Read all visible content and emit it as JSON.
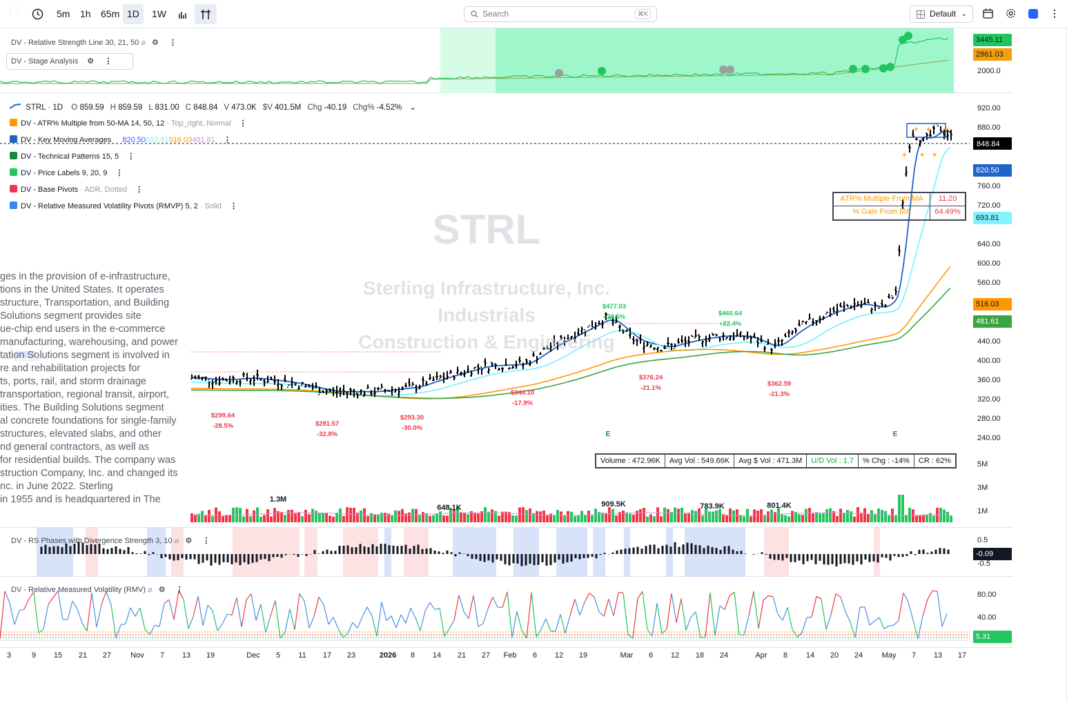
{
  "toolbar": {
    "intervals": [
      "5m",
      "1h",
      "65m",
      "1D",
      "1W"
    ],
    "active_interval": "1D",
    "search_placeholder": "Search",
    "search_shortcut": "⌘K",
    "layout_label": "Default"
  },
  "rs_pane": {
    "title": "DV - Relative Strength Line 30, 21, 50",
    "sub_title": "DV - Stage Analysis",
    "axis": [
      "2000.0"
    ],
    "tags": [
      {
        "value": "3445.11",
        "color": "#22c55e"
      },
      {
        "value": "2861.03",
        "color": "#f59e0b"
      }
    ]
  },
  "main_legend": {
    "symbol": "STRL · 1D",
    "ohlc": [
      {
        "k": "O",
        "v": "859.59"
      },
      {
        "k": "H",
        "v": "859.59"
      },
      {
        "k": "L",
        "v": "831.00"
      },
      {
        "k": "C",
        "v": "848.84"
      },
      {
        "k": "V",
        "v": "473.0K"
      },
      {
        "k": "$V",
        "v": "401.5M"
      },
      {
        "k": "Chg",
        "v": "-40.19"
      },
      {
        "k": "Chg%",
        "v": "-4.52%"
      }
    ],
    "indicators": [
      {
        "color": "#ff9800",
        "name": "DV - ATR% Multiple from 50-MA 14, 50, 12",
        "extra": "· Top_right, Normal"
      },
      {
        "color": "#1e63c8",
        "name": "DV - Key Moving Averages",
        "extra": ""
      },
      {
        "color": "#158a3b",
        "name": "DV - Technical Patterns 15, 5",
        "extra": ""
      },
      {
        "color": "#22c55e",
        "name": "DV - Price Labels 9, 20, 9",
        "extra": ""
      },
      {
        "color": "#f23645",
        "name": "DV - Base Pivots",
        "extra": "· ADR, Dotted"
      },
      {
        "color": "#3b82f6",
        "name": "DV - Relative Measured Volatility Pivots (RMVP) 5, 2",
        "extra": "· Solid"
      }
    ],
    "ma_values": [
      {
        "v": "820.50",
        "c": "#2962ff"
      },
      {
        "v": "693.81",
        "c": "#7ff3ff"
      },
      {
        "v": "516.03",
        "c": "#ff9800"
      },
      {
        "v": "481.61",
        "c": "#ce93d8"
      }
    ]
  },
  "watermark": {
    "ticker": "STRL",
    "company": "Sterling Infrastructure, Inc.",
    "sector": "Industrials",
    "industry": "Construction & Engineering"
  },
  "description_lines": [
    "ges in the provision of e-infrastructure,",
    "tions in the United States. It operates",
    "structure, Transportation, and Building",
    "Solutions segment provides site",
    "ue-chip end users in the e-commerce",
    "manufacturing, warehousing, and power",
    "tation Solutions segment is involved in",
    "re and rehabilitation projects for",
    "ts, ports, rail, and storm drainage",
    "transportation, regional transit, airport,",
    "ities. The Building Solutions segment",
    "al concrete foundations for single-family",
    " structures, elevated slabs, and other",
    "nd general contractors, as well as",
    "for residential builds. The company was",
    "struction Company, Inc. and changed its",
    "nc. in June 2022. Sterling",
    " in 1955 and is headquartered in The"
  ],
  "atr_table": [
    {
      "k": "ATR% Multiple From MA",
      "v": "11.20"
    },
    {
      "k": "% Gain From MA",
      "v": "64.49%"
    }
  ],
  "price_axis": [
    "920.00",
    "880.00",
    "760.00",
    "720.00",
    "640.00",
    "600.00",
    "560.00",
    "440.00",
    "400.00",
    "360.00",
    "320.00",
    "280.00",
    "240.00"
  ],
  "price_tags": [
    {
      "v": "848.84",
      "bg": "#000000",
      "fg": "#ffffff"
    },
    {
      "v": "820.50",
      "bg": "#1e63c8",
      "fg": "#ffffff"
    },
    {
      "v": "693.81",
      "bg": "#7ff3ff",
      "fg": "#131722"
    },
    {
      "v": "516.03",
      "bg": "#ff9800",
      "fg": "#131722"
    },
    {
      "v": "481.61",
      "bg": "#38a53f",
      "fg": "#ffffff"
    }
  ],
  "pivot_labels": [
    {
      "p": "$299.64",
      "c": "-28.5%",
      "color": "#f23645"
    },
    {
      "p": "$281.57",
      "c": "-32.8%",
      "color": "#f23645"
    },
    {
      "p": "$293.30",
      "c": "-30.0%",
      "color": "#f23645"
    },
    {
      "p": "$344.10",
      "c": "-17.9%",
      "color": "#f23645"
    },
    {
      "p": "$477.03",
      "c": "+38.6%",
      "color": "#22c55e"
    },
    {
      "p": "$376.24",
      "c": "-21.1%",
      "color": "#f23645"
    },
    {
      "p": "$460.64",
      "c": "+22.4%",
      "color": "#22c55e"
    },
    {
      "p": "$362.59",
      "c": "-21.3%",
      "color": "#f23645"
    }
  ],
  "earnings_marker": "E",
  "stats": [
    {
      "t": "Volume : 472.96K",
      "c": "#131722"
    },
    {
      "t": "Avg Vol : 549.66K",
      "c": "#131722"
    },
    {
      "t": "Avg $ Vol : 471.3M",
      "c": "#131722"
    },
    {
      "t": "U/D Vol : 1.7",
      "c": "#22a33c"
    },
    {
      "t": "% Chg : -14%",
      "c": "#131722"
    },
    {
      "t": "CR : 62%",
      "c": "#131722"
    }
  ],
  "volume_axis": [
    "5M",
    "3M",
    "1M"
  ],
  "volume_labels": [
    "1.3M",
    "648.1K",
    "909.5K",
    "783.9K",
    "801.4K"
  ],
  "rs_phase_pane": {
    "title": "DV - RS Phases with Divergence Strength 3, 10",
    "axis": [
      "0.5",
      "-0.5"
    ],
    "tag": "-0.09"
  },
  "rmv_pane": {
    "title": "DV - Relative Measured Volatility (RMV)",
    "axis": [
      "80.00",
      "40.00"
    ],
    "tag": "5.31"
  },
  "time_axis": [
    {
      "t": "3",
      "b": false
    },
    {
      "t": "9",
      "b": false
    },
    {
      "t": "15",
      "b": false
    },
    {
      "t": "21",
      "b": false
    },
    {
      "t": "27",
      "b": false
    },
    {
      "t": "Nov",
      "b": false
    },
    {
      "t": "7",
      "b": false
    },
    {
      "t": "13",
      "b": false
    },
    {
      "t": "19",
      "b": false
    },
    {
      "t": "Dec",
      "b": false
    },
    {
      "t": "5",
      "b": false
    },
    {
      "t": "11",
      "b": false
    },
    {
      "t": "17",
      "b": false
    },
    {
      "t": "23",
      "b": false
    },
    {
      "t": "2026",
      "b": true
    },
    {
      "t": "8",
      "b": false
    },
    {
      "t": "14",
      "b": false
    },
    {
      "t": "21",
      "b": false
    },
    {
      "t": "27",
      "b": false
    },
    {
      "t": "Feb",
      "b": false
    },
    {
      "t": "6",
      "b": false
    },
    {
      "t": "12",
      "b": false
    },
    {
      "t": "19",
      "b": false
    },
    {
      "t": "Mar",
      "b": false
    },
    {
      "t": "6",
      "b": false
    },
    {
      "t": "12",
      "b": false
    },
    {
      "t": "18",
      "b": false
    },
    {
      "t": "24",
      "b": false
    },
    {
      "t": "Apr",
      "b": false
    },
    {
      "t": "8",
      "b": false
    },
    {
      "t": "14",
      "b": false
    },
    {
      "t": "20",
      "b": false
    },
    {
      "t": "24",
      "b": false
    },
    {
      "t": "May",
      "b": false
    },
    {
      "t": "7",
      "b": false
    },
    {
      "t": "13",
      "b": false
    },
    {
      "t": "17",
      "b": false
    }
  ]
}
